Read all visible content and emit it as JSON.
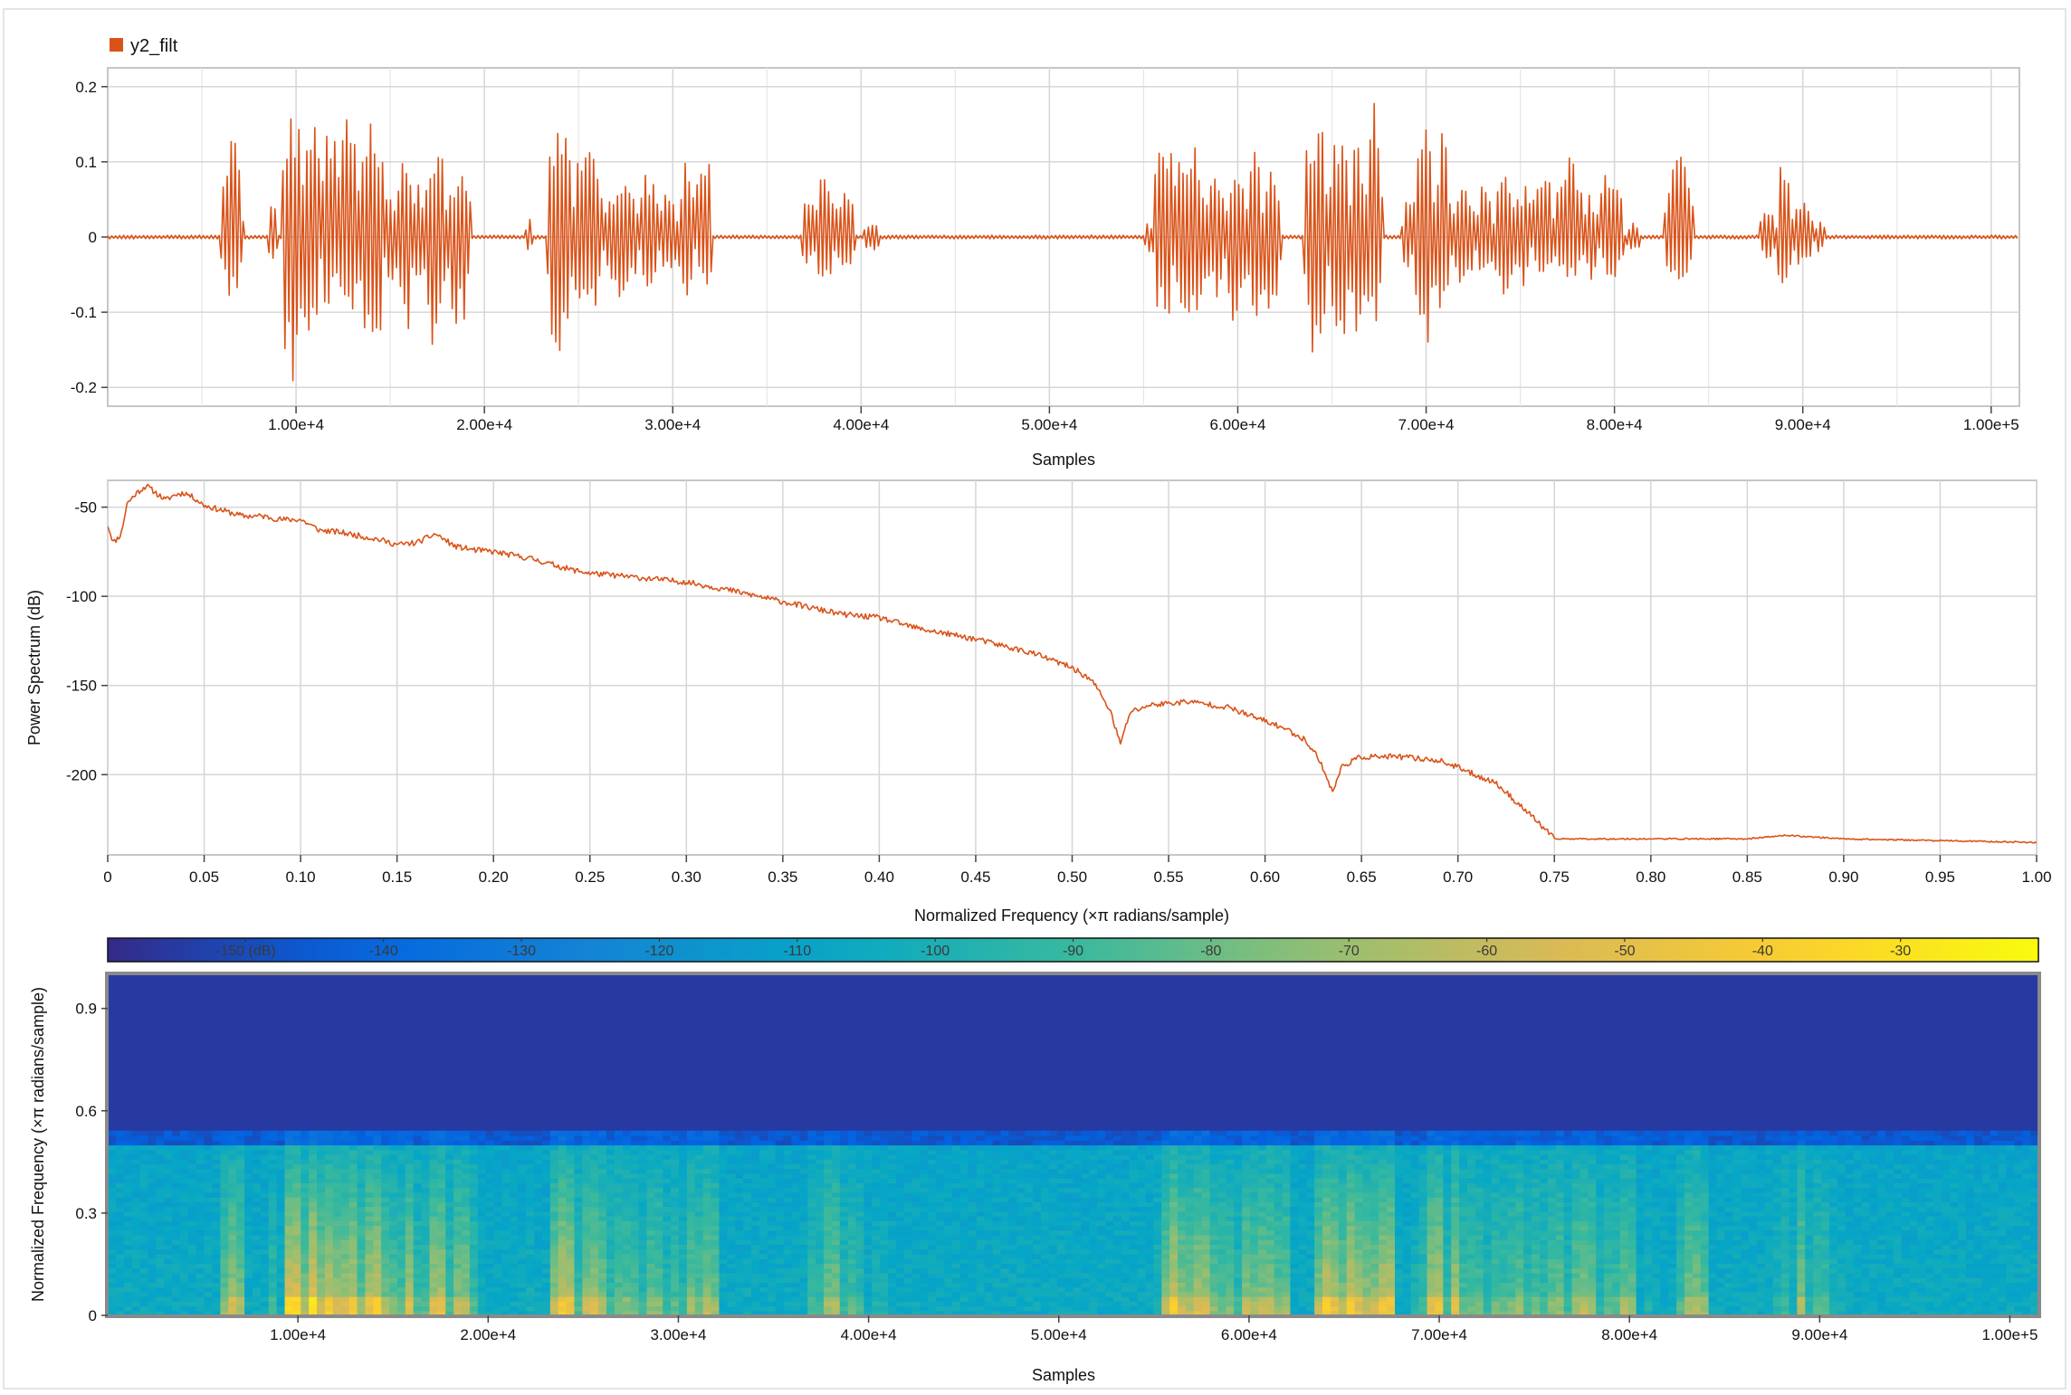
{
  "chart_data": [
    {
      "type": "line",
      "legend": "y2_filt",
      "xlabel": "Samples",
      "ylabel": "",
      "xlim": [
        0,
        101500
      ],
      "ylim": [
        -0.225,
        0.225
      ],
      "x_ticks": [
        10000,
        20000,
        30000,
        40000,
        50000,
        60000,
        70000,
        80000,
        90000,
        100000
      ],
      "x_tick_labels": [
        "1.00e+4",
        "2.00e+4",
        "3.00e+4",
        "4.00e+4",
        "5.00e+4",
        "6.00e+4",
        "7.00e+4",
        "8.00e+4",
        "9.00e+4",
        "1.00e+5"
      ],
      "y_ticks": [
        0.2,
        0.1,
        0,
        -0.1,
        -0.2
      ],
      "y_tick_labels": [
        "0.2",
        "0.1",
        "0",
        "-0.1",
        "-0.2"
      ],
      "color": "#d95319",
      "grid": true,
      "segments": [
        {
          "start": 6000,
          "end": 7200,
          "pos": 0.13,
          "neg": -0.08
        },
        {
          "start": 8500,
          "end": 9000,
          "pos": 0.05,
          "neg": -0.04
        },
        {
          "start": 9200,
          "end": 10300,
          "pos": 0.2,
          "neg": -0.2
        },
        {
          "start": 10300,
          "end": 11300,
          "pos": 0.2,
          "neg": -0.17
        },
        {
          "start": 11300,
          "end": 12200,
          "pos": 0.17,
          "neg": -0.1
        },
        {
          "start": 12200,
          "end": 13400,
          "pos": 0.16,
          "neg": -0.12
        },
        {
          "start": 13400,
          "end": 14700,
          "pos": 0.16,
          "neg": -0.17
        },
        {
          "start": 14700,
          "end": 15400,
          "pos": 0.07,
          "neg": -0.08
        },
        {
          "start": 15400,
          "end": 16200,
          "pos": 0.13,
          "neg": -0.14
        },
        {
          "start": 16200,
          "end": 16800,
          "pos": 0.07,
          "neg": -0.06
        },
        {
          "start": 16800,
          "end": 18000,
          "pos": 0.15,
          "neg": -0.15
        },
        {
          "start": 18000,
          "end": 19300,
          "pos": 0.1,
          "neg": -0.12
        },
        {
          "start": 22200,
          "end": 22600,
          "pos": 0.04,
          "neg": -0.02
        },
        {
          "start": 23300,
          "end": 24700,
          "pos": 0.15,
          "neg": -0.17
        },
        {
          "start": 24700,
          "end": 26300,
          "pos": 0.13,
          "neg": -0.12
        },
        {
          "start": 26300,
          "end": 28200,
          "pos": 0.08,
          "neg": -0.08
        },
        {
          "start": 28200,
          "end": 29300,
          "pos": 0.09,
          "neg": -0.07
        },
        {
          "start": 29300,
          "end": 30300,
          "pos": 0.06,
          "neg": -0.05
        },
        {
          "start": 30300,
          "end": 31200,
          "pos": 0.1,
          "neg": -0.08
        },
        {
          "start": 31200,
          "end": 32100,
          "pos": 0.12,
          "neg": -0.08
        },
        {
          "start": 36800,
          "end": 37600,
          "pos": 0.05,
          "neg": -0.04
        },
        {
          "start": 37600,
          "end": 38600,
          "pos": 0.11,
          "neg": -0.07
        },
        {
          "start": 38600,
          "end": 39700,
          "pos": 0.06,
          "neg": -0.05
        },
        {
          "start": 40100,
          "end": 41000,
          "pos": 0.02,
          "neg": -0.02
        },
        {
          "start": 55000,
          "end": 55500,
          "pos": 0.02,
          "neg": -0.02
        },
        {
          "start": 55500,
          "end": 56600,
          "pos": 0.17,
          "neg": -0.12
        },
        {
          "start": 56600,
          "end": 58300,
          "pos": 0.14,
          "neg": -0.14
        },
        {
          "start": 58300,
          "end": 59400,
          "pos": 0.08,
          "neg": -0.08
        },
        {
          "start": 59400,
          "end": 60500,
          "pos": 0.12,
          "neg": -0.12
        },
        {
          "start": 60500,
          "end": 61300,
          "pos": 0.13,
          "neg": -0.13
        },
        {
          "start": 61300,
          "end": 62300,
          "pos": 0.1,
          "neg": -0.1
        },
        {
          "start": 63500,
          "end": 64800,
          "pos": 0.17,
          "neg": -0.16
        },
        {
          "start": 64800,
          "end": 66000,
          "pos": 0.17,
          "neg": -0.16
        },
        {
          "start": 66000,
          "end": 66800,
          "pos": 0.14,
          "neg": -0.13
        },
        {
          "start": 66800,
          "end": 67700,
          "pos": 0.18,
          "neg": -0.14
        },
        {
          "start": 68700,
          "end": 69300,
          "pos": 0.05,
          "neg": -0.05
        },
        {
          "start": 69300,
          "end": 70400,
          "pos": 0.15,
          "neg": -0.16
        },
        {
          "start": 70400,
          "end": 71300,
          "pos": 0.14,
          "neg": -0.12
        },
        {
          "start": 71300,
          "end": 72600,
          "pos": 0.07,
          "neg": -0.07
        },
        {
          "start": 72600,
          "end": 73600,
          "pos": 0.07,
          "neg": -0.06
        },
        {
          "start": 73600,
          "end": 74700,
          "pos": 0.09,
          "neg": -0.08
        },
        {
          "start": 74700,
          "end": 75600,
          "pos": 0.07,
          "neg": -0.07
        },
        {
          "start": 75600,
          "end": 76800,
          "pos": 0.09,
          "neg": -0.06
        },
        {
          "start": 76800,
          "end": 78400,
          "pos": 0.11,
          "neg": -0.06
        },
        {
          "start": 78400,
          "end": 79200,
          "pos": 0.06,
          "neg": -0.06
        },
        {
          "start": 79200,
          "end": 80500,
          "pos": 0.1,
          "neg": -0.06
        },
        {
          "start": 80600,
          "end": 81400,
          "pos": 0.02,
          "neg": -0.02
        },
        {
          "start": 82600,
          "end": 84200,
          "pos": 0.11,
          "neg": -0.07
        },
        {
          "start": 87700,
          "end": 88600,
          "pos": 0.04,
          "neg": -0.03
        },
        {
          "start": 88600,
          "end": 89400,
          "pos": 0.11,
          "neg": -0.07
        },
        {
          "start": 89400,
          "end": 90600,
          "pos": 0.06,
          "neg": -0.04
        },
        {
          "start": 90600,
          "end": 91200,
          "pos": 0.02,
          "neg": -0.02
        }
      ]
    },
    {
      "type": "line",
      "xlabel": "Normalized Frequency (×π radians/sample)",
      "ylabel": "Power Spectrum (dB)",
      "xlim": [
        0,
        1
      ],
      "ylim": [
        -245,
        -35
      ],
      "x_ticks": [
        0,
        0.05,
        0.1,
        0.15,
        0.2,
        0.25,
        0.3,
        0.35,
        0.4,
        0.45,
        0.5,
        0.55,
        0.6,
        0.65,
        0.7,
        0.75,
        0.8,
        0.85,
        0.9,
        0.95,
        1.0
      ],
      "x_tick_labels": [
        "0",
        "0.05",
        "0.10",
        "0.15",
        "0.20",
        "0.25",
        "0.30",
        "0.35",
        "0.40",
        "0.45",
        "0.50",
        "0.55",
        "0.60",
        "0.65",
        "0.70",
        "0.75",
        "0.80",
        "0.85",
        "0.90",
        "0.95",
        "1.00"
      ],
      "y_ticks": [
        -50,
        -100,
        -150,
        -200
      ],
      "y_tick_labels": [
        "-50",
        "-100",
        "-150",
        "-200"
      ],
      "color": "#d95319",
      "grid": true,
      "x": [
        0,
        0.003,
        0.007,
        0.01,
        0.015,
        0.02,
        0.025,
        0.03,
        0.035,
        0.04,
        0.045,
        0.05,
        0.06,
        0.07,
        0.08,
        0.09,
        0.1,
        0.11,
        0.12,
        0.13,
        0.14,
        0.15,
        0.16,
        0.17,
        0.18,
        0.19,
        0.2,
        0.22,
        0.24,
        0.25,
        0.27,
        0.28,
        0.3,
        0.32,
        0.35,
        0.38,
        0.4,
        0.42,
        0.45,
        0.48,
        0.5,
        0.51,
        0.515,
        0.52,
        0.525,
        0.53,
        0.54,
        0.56,
        0.58,
        0.6,
        0.61,
        0.62,
        0.625,
        0.63,
        0.635,
        0.64,
        0.65,
        0.67,
        0.69,
        0.7,
        0.72,
        0.74,
        0.75,
        0.8,
        0.85,
        0.87,
        0.9,
        0.95,
        1.0
      ],
      "y": [
        -60,
        -70,
        -65,
        -48,
        -42,
        -38,
        -42,
        -46,
        -43,
        -42,
        -45,
        -49,
        -52,
        -55,
        -55,
        -57,
        -57,
        -63,
        -64,
        -66,
        -68,
        -71,
        -70,
        -65,
        -72,
        -74,
        -75,
        -79,
        -85,
        -87,
        -89,
        -90,
        -92,
        -96,
        -103,
        -110,
        -112,
        -118,
        -124,
        -132,
        -140,
        -147,
        -155,
        -165,
        -183,
        -165,
        -161,
        -159,
        -162,
        -170,
        -174,
        -180,
        -186,
        -196,
        -210,
        -195,
        -190,
        -190,
        -192,
        -196,
        -205,
        -225,
        -236,
        -236,
        -236,
        -234,
        -236,
        -237,
        -238
      ]
    },
    {
      "type": "heatmap",
      "title": "",
      "xlabel": "Samples",
      "ylabel": "Normalized Frequency (×π radians/sample)",
      "xlim": [
        0,
        101500
      ],
      "ylim": [
        0,
        1
      ],
      "x_ticks": [
        10000,
        20000,
        30000,
        40000,
        50000,
        60000,
        70000,
        80000,
        90000,
        100000
      ],
      "x_tick_labels": [
        "1.00e+4",
        "2.00e+4",
        "3.00e+4",
        "4.00e+4",
        "5.00e+4",
        "6.00e+4",
        "7.00e+4",
        "8.00e+4",
        "9.00e+4",
        "1.00e+5"
      ],
      "y_ticks": [
        0,
        0.3,
        0.6,
        0.9
      ],
      "y_tick_labels": [
        "0",
        "0.3",
        "0.6",
        "0.9"
      ],
      "colorbar": {
        "range": [
          -160,
          -20
        ],
        "ticks": [
          -150,
          -140,
          -130,
          -120,
          -110,
          -100,
          -90,
          -80,
          -70,
          -60,
          -50,
          -40,
          -30
        ],
        "tick_labels": [
          "-150 (dB)",
          "-140",
          "-130",
          "-120",
          "-110",
          "-100",
          "-90",
          "-80",
          "-70",
          "-60",
          "-50",
          "-40",
          "-30"
        ]
      },
      "cutoff_freq": 0.5,
      "floor_db": -155
    }
  ]
}
